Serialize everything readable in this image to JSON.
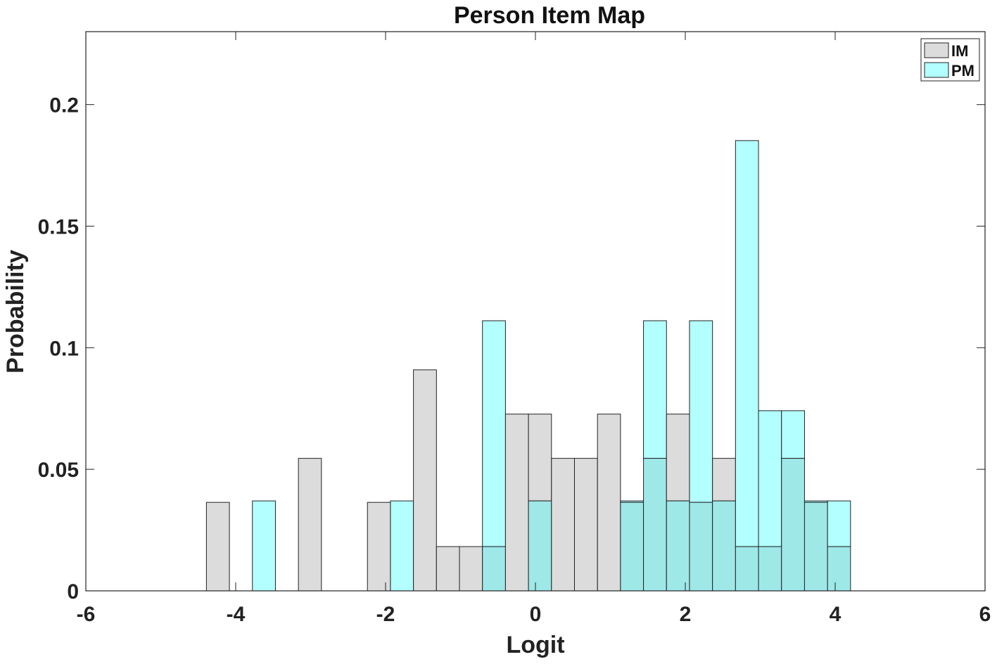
{
  "chart_data": {
    "type": "bar",
    "title": "Person Item Map",
    "xlabel": "Logit",
    "ylabel": "Probability",
    "xlim": [
      -6,
      6
    ],
    "ylim": [
      0,
      0.23
    ],
    "xticks": [
      -6,
      -4,
      -2,
      0,
      2,
      4,
      6
    ],
    "yticks": [
      0,
      0.05,
      0.1,
      0.15,
      0.2
    ],
    "xtick_labels": [
      "-6",
      "-4",
      "-2",
      "0",
      "2",
      "4",
      "6"
    ],
    "ytick_labels": [
      "0",
      "0.05",
      "0.1",
      "0.15",
      "0.2"
    ],
    "bin_edges": [
      -5.005,
      -4.698,
      -4.391,
      -4.084,
      -3.777,
      -3.47,
      -3.163,
      -2.856,
      -2.549,
      -2.242,
      -1.935,
      -1.628,
      -1.321,
      -1.014,
      -0.707,
      -0.4,
      -0.093,
      0.214,
      0.521,
      0.828,
      1.135,
      1.442,
      1.749,
      2.056,
      2.363,
      2.67,
      2.977,
      3.284,
      3.591,
      3.898,
      4.205
    ],
    "series": [
      {
        "name": "IM",
        "color": "#dcdcdc",
        "values": [
          0,
          0,
          0.0364,
          0,
          0,
          0,
          0.0545,
          0,
          0,
          0.0364,
          0,
          0.0909,
          0.0182,
          0.0182,
          0.0182,
          0.0727,
          0.0727,
          0.0545,
          0.0545,
          0.0727,
          0.0364,
          0.0545,
          0.0727,
          0.0364,
          0.0545,
          0.0182,
          0.0182,
          0.0545,
          0.0364,
          0.0182
        ]
      },
      {
        "name": "PM",
        "color": "#b3ffff",
        "values": [
          0,
          0,
          0,
          0,
          0.037,
          0,
          0,
          0,
          0,
          0,
          0.037,
          0,
          0,
          0,
          0.1111,
          0,
          0.037,
          0,
          0,
          0,
          0.037,
          0.1111,
          0.037,
          0.1111,
          0.037,
          0.1852,
          0.0741,
          0.0741,
          0.037,
          0.037
        ]
      }
    ],
    "overlap_color": "#9ee8e8",
    "legend": {
      "position": "top-right",
      "entries": [
        "IM",
        "PM"
      ]
    },
    "grid": false
  }
}
